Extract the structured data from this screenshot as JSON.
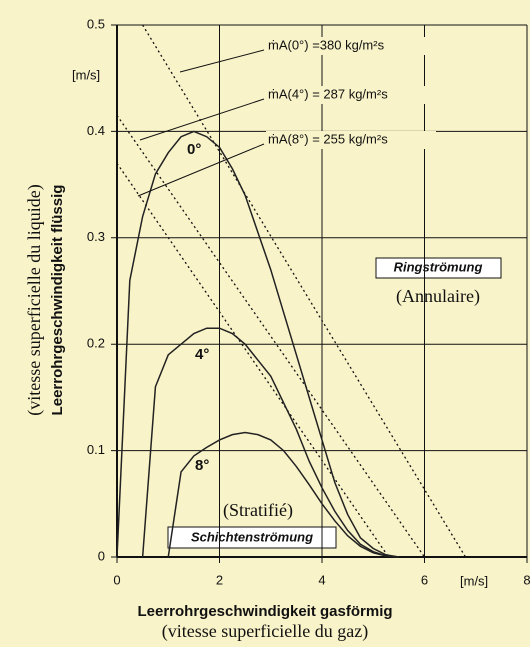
{
  "chart_data": {
    "type": "line",
    "x_label": "Leerrohrgeschwindigkeit gasförmig",
    "x_label_fr": "(vitesse superficielle du gaz)",
    "y_label": "Leerrohrgeschwindigkeit flüssig",
    "y_label_fr": "(vitesse superficielle du liquide)",
    "x_unit": "[m/s]",
    "y_unit": "[m/s]",
    "x": [
      0,
      0.25,
      0.5,
      0.75,
      1,
      1.25,
      1.5,
      1.75,
      2,
      2.25,
      2.5,
      2.75,
      3,
      3.25,
      3.5,
      3.75,
      4,
      4.25,
      4.5,
      4.75,
      5,
      5.25,
      5.5
    ],
    "series": [
      {
        "name": "0°",
        "color": "#222",
        "values": [
          0,
          0.26,
          0.32,
          0.36,
          0.38,
          0.395,
          0.4,
          0.395,
          0.385,
          0.365,
          0.34,
          0.305,
          0.27,
          0.23,
          0.19,
          0.15,
          0.11,
          0.07,
          0.04,
          0.018,
          0.008,
          0.002,
          0
        ]
      },
      {
        "name": "4°",
        "color": "#222",
        "values": [
          null,
          null,
          0,
          0.16,
          0.19,
          0.2,
          0.21,
          0.215,
          0.215,
          0.21,
          0.2,
          0.185,
          0.17,
          0.145,
          0.12,
          0.09,
          0.065,
          0.043,
          0.025,
          0.012,
          0.005,
          0.001,
          0
        ]
      },
      {
        "name": "8°",
        "color": "#222",
        "values": [
          null,
          null,
          null,
          null,
          0,
          0.08,
          0.095,
          0.103,
          0.11,
          0.115,
          0.117,
          0.115,
          0.11,
          0.1,
          0.085,
          0.068,
          0.05,
          0.034,
          0.02,
          0.01,
          0.004,
          0.001,
          0
        ]
      }
    ],
    "reference_lines": [
      {
        "x": [
          0.5,
          6.8
        ],
        "y": [
          0.5,
          0
        ]
      },
      {
        "x": [
          0,
          6.0
        ],
        "y": [
          0.415,
          0
        ]
      },
      {
        "x": [
          0,
          5.3
        ],
        "y": [
          0.37,
          0
        ]
      }
    ],
    "annotations": [
      "ṁA(0°) =380 kg/m²s",
      "ṁA(4°) = 287 kg/m²s",
      "ṁA(8°) = 255 kg/m²s"
    ],
    "regions": [
      "Ringströmung",
      "(Annulaire)",
      "Schichtenströmung",
      "(Stratifié)"
    ],
    "xlim": [
      0,
      8
    ],
    "ylim": [
      0,
      0.5
    ],
    "xticks": [
      0,
      2,
      4,
      6,
      8
    ],
    "yticks": [
      0,
      0.1,
      0.2,
      0.3,
      0.4,
      0.5
    ],
    "grid": true
  }
}
